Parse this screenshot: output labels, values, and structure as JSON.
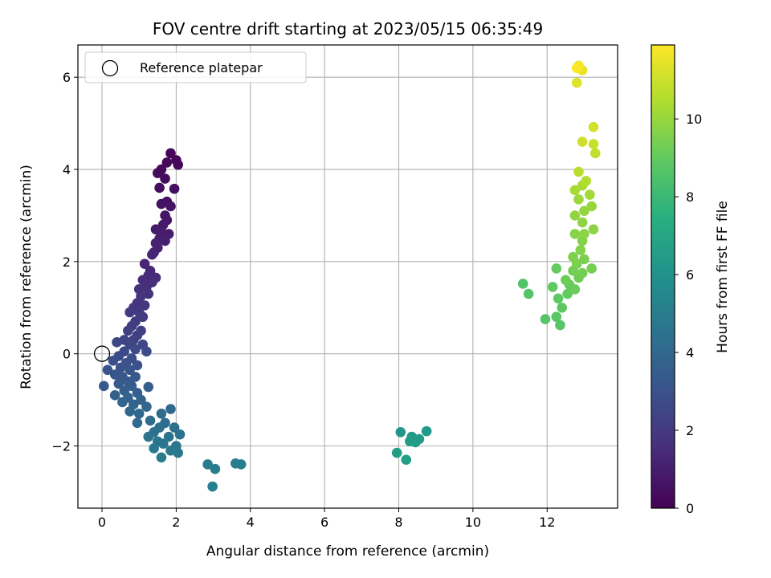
{
  "chart_data": {
    "type": "scatter",
    "title": "FOV centre drift starting at 2023/05/15 06:35:49",
    "xlabel": "Angular distance from reference (arcmin)",
    "ylabel": "Rotation from reference (arcmin)",
    "xlim": [
      -0.65,
      13.9
    ],
    "ylim": [
      -3.35,
      6.7
    ],
    "xticks": [
      0,
      2,
      4,
      6,
      8,
      10,
      12
    ],
    "yticks": [
      -2,
      0,
      2,
      4,
      6
    ],
    "grid": true,
    "legend": {
      "location": "upper-left",
      "entries": [
        "Reference platepar"
      ]
    },
    "reference_point": {
      "x": 0,
      "y": 0
    },
    "colorbar": {
      "label": "Hours from first FF file",
      "colormap": "viridis",
      "range": [
        0,
        11.9
      ],
      "ticks": [
        0,
        2,
        4,
        6,
        8,
        10
      ]
    },
    "series": [
      {
        "points": [
          {
            "x": 1.85,
            "y": 4.35,
            "h": 0.1
          },
          {
            "x": 2.0,
            "y": 4.2,
            "h": 0.15
          },
          {
            "x": 2.05,
            "y": 4.1,
            "h": 0.2
          },
          {
            "x": 1.75,
            "y": 4.15,
            "h": 0.25
          },
          {
            "x": 1.6,
            "y": 4.0,
            "h": 0.3
          },
          {
            "x": 1.5,
            "y": 3.92,
            "h": 0.35
          },
          {
            "x": 1.7,
            "y": 3.8,
            "h": 0.4
          },
          {
            "x": 1.55,
            "y": 3.6,
            "h": 0.45
          },
          {
            "x": 1.95,
            "y": 3.58,
            "h": 0.5
          },
          {
            "x": 1.75,
            "y": 3.3,
            "h": 0.55
          },
          {
            "x": 1.6,
            "y": 3.25,
            "h": 0.6
          },
          {
            "x": 1.85,
            "y": 3.2,
            "h": 0.65
          },
          {
            "x": 1.7,
            "y": 3.0,
            "h": 0.7
          },
          {
            "x": 1.75,
            "y": 2.9,
            "h": 0.75
          },
          {
            "x": 1.65,
            "y": 2.8,
            "h": 0.8
          },
          {
            "x": 1.45,
            "y": 2.7,
            "h": 0.85
          },
          {
            "x": 1.6,
            "y": 2.65,
            "h": 0.9
          },
          {
            "x": 1.8,
            "y": 2.6,
            "h": 0.95
          },
          {
            "x": 1.55,
            "y": 2.5,
            "h": 1.0
          },
          {
            "x": 1.7,
            "y": 2.45,
            "h": 1.05
          },
          {
            "x": 1.45,
            "y": 2.4,
            "h": 1.1
          },
          {
            "x": 1.5,
            "y": 2.3,
            "h": 1.15
          },
          {
            "x": 1.4,
            "y": 2.2,
            "h": 1.2
          },
          {
            "x": 1.35,
            "y": 2.15,
            "h": 1.25
          },
          {
            "x": 1.15,
            "y": 1.95,
            "h": 1.3
          },
          {
            "x": 1.3,
            "y": 1.8,
            "h": 1.35
          },
          {
            "x": 1.25,
            "y": 1.7,
            "h": 1.4
          },
          {
            "x": 1.45,
            "y": 1.65,
            "h": 1.45
          },
          {
            "x": 1.1,
            "y": 1.6,
            "h": 1.5
          },
          {
            "x": 1.35,
            "y": 1.55,
            "h": 1.55
          },
          {
            "x": 1.2,
            "y": 1.45,
            "h": 1.6
          },
          {
            "x": 1.0,
            "y": 1.4,
            "h": 1.65
          },
          {
            "x": 1.25,
            "y": 1.3,
            "h": 1.7
          },
          {
            "x": 1.05,
            "y": 1.25,
            "h": 1.75
          },
          {
            "x": 0.95,
            "y": 1.1,
            "h": 1.8
          },
          {
            "x": 1.15,
            "y": 1.05,
            "h": 1.85
          },
          {
            "x": 0.85,
            "y": 1.0,
            "h": 1.9
          },
          {
            "x": 1.0,
            "y": 0.9,
            "h": 1.95
          },
          {
            "x": 0.75,
            "y": 0.9,
            "h": 2.0
          },
          {
            "x": 1.1,
            "y": 0.8,
            "h": 2.05
          },
          {
            "x": 0.9,
            "y": 0.7,
            "h": 2.1
          },
          {
            "x": 0.8,
            "y": 0.6,
            "h": 2.15
          },
          {
            "x": 1.05,
            "y": 0.5,
            "h": 2.2
          },
          {
            "x": 0.7,
            "y": 0.5,
            "h": 2.25
          },
          {
            "x": 0.95,
            "y": 0.4,
            "h": 2.3
          },
          {
            "x": 0.85,
            "y": 0.3,
            "h": 2.35
          },
          {
            "x": 0.6,
            "y": 0.3,
            "h": 2.4
          },
          {
            "x": 1.1,
            "y": 0.2,
            "h": 2.45
          },
          {
            "x": 0.75,
            "y": 0.2,
            "h": 2.5
          },
          {
            "x": 0.4,
            "y": 0.25,
            "h": 2.55
          },
          {
            "x": 0.9,
            "y": 0.1,
            "h": 2.6
          },
          {
            "x": 0.6,
            "y": 0.05,
            "h": 2.65
          },
          {
            "x": 1.2,
            "y": 0.05,
            "h": 2.7
          },
          {
            "x": 0.45,
            "y": -0.05,
            "h": 2.75
          },
          {
            "x": 0.8,
            "y": -0.1,
            "h": 2.8
          },
          {
            "x": 0.3,
            "y": -0.15,
            "h": 2.85
          },
          {
            "x": 0.65,
            "y": -0.2,
            "h": 2.9
          },
          {
            "x": 0.95,
            "y": -0.25,
            "h": 2.95
          },
          {
            "x": 0.5,
            "y": -0.3,
            "h": 3.0
          },
          {
            "x": 0.15,
            "y": -0.35,
            "h": 3.05
          },
          {
            "x": 0.75,
            "y": -0.35,
            "h": 3.1
          },
          {
            "x": 0.35,
            "y": -0.45,
            "h": 3.15
          },
          {
            "x": 0.55,
            "y": -0.5,
            "h": 3.2
          },
          {
            "x": 0.9,
            "y": -0.5,
            "h": 3.25
          },
          {
            "x": 0.7,
            "y": -0.6,
            "h": 3.3
          },
          {
            "x": 0.05,
            "y": -0.7,
            "h": 3.35
          },
          {
            "x": 0.45,
            "y": -0.65,
            "h": 3.4
          },
          {
            "x": 0.8,
            "y": -0.7,
            "h": 3.45
          },
          {
            "x": 1.25,
            "y": -0.72,
            "h": 3.5
          },
          {
            "x": 0.6,
            "y": -0.8,
            "h": 3.55
          },
          {
            "x": 0.95,
            "y": -0.85,
            "h": 3.6
          },
          {
            "x": 0.35,
            "y": -0.9,
            "h": 3.65
          },
          {
            "x": 0.7,
            "y": -0.95,
            "h": 3.7
          },
          {
            "x": 1.05,
            "y": -1.0,
            "h": 3.75
          },
          {
            "x": 0.55,
            "y": -1.05,
            "h": 3.8
          },
          {
            "x": 0.85,
            "y": -1.1,
            "h": 3.85
          },
          {
            "x": 1.2,
            "y": -1.15,
            "h": 3.9
          },
          {
            "x": 0.75,
            "y": -1.25,
            "h": 3.95
          },
          {
            "x": 1.0,
            "y": -1.3,
            "h": 4.0
          },
          {
            "x": 1.85,
            "y": -1.2,
            "h": 4.05
          },
          {
            "x": 1.6,
            "y": -1.3,
            "h": 4.1
          },
          {
            "x": 0.95,
            "y": -1.5,
            "h": 4.15
          },
          {
            "x": 1.3,
            "y": -1.45,
            "h": 4.2
          },
          {
            "x": 1.7,
            "y": -1.5,
            "h": 4.25
          },
          {
            "x": 1.55,
            "y": -1.6,
            "h": 4.3
          },
          {
            "x": 1.95,
            "y": -1.6,
            "h": 4.35
          },
          {
            "x": 1.4,
            "y": -1.7,
            "h": 4.4
          },
          {
            "x": 2.1,
            "y": -1.75,
            "h": 4.45
          },
          {
            "x": 1.25,
            "y": -1.8,
            "h": 4.5
          },
          {
            "x": 1.8,
            "y": -1.8,
            "h": 4.55
          },
          {
            "x": 1.5,
            "y": -1.9,
            "h": 4.6
          },
          {
            "x": 1.65,
            "y": -1.95,
            "h": 4.65
          },
          {
            "x": 2.0,
            "y": -2.0,
            "h": 4.7
          },
          {
            "x": 1.4,
            "y": -2.05,
            "h": 4.75
          },
          {
            "x": 1.85,
            "y": -2.1,
            "h": 4.8
          },
          {
            "x": 2.05,
            "y": -2.15,
            "h": 4.85
          },
          {
            "x": 1.6,
            "y": -2.25,
            "h": 4.9
          },
          {
            "x": 2.85,
            "y": -2.4,
            "h": 4.95
          },
          {
            "x": 3.05,
            "y": -2.5,
            "h": 5.0
          },
          {
            "x": 3.6,
            "y": -2.38,
            "h": 5.05
          },
          {
            "x": 3.75,
            "y": -2.4,
            "h": 5.1
          },
          {
            "x": 2.98,
            "y": -2.88,
            "h": 5.15
          },
          {
            "x": 8.05,
            "y": -1.7,
            "h": 6.2
          },
          {
            "x": 8.35,
            "y": -1.8,
            "h": 6.3
          },
          {
            "x": 8.75,
            "y": -1.68,
            "h": 6.35
          },
          {
            "x": 8.55,
            "y": -1.85,
            "h": 6.4
          },
          {
            "x": 8.3,
            "y": -1.9,
            "h": 6.45
          },
          {
            "x": 8.45,
            "y": -1.92,
            "h": 6.5
          },
          {
            "x": 7.95,
            "y": -2.15,
            "h": 6.55
          },
          {
            "x": 8.2,
            "y": -2.3,
            "h": 6.6
          },
          {
            "x": 11.35,
            "y": 1.52,
            "h": 8.6
          },
          {
            "x": 11.5,
            "y": 1.3,
            "h": 8.65
          },
          {
            "x": 11.95,
            "y": 0.75,
            "h": 8.7
          },
          {
            "x": 12.35,
            "y": 0.62,
            "h": 8.75
          },
          {
            "x": 12.25,
            "y": 0.8,
            "h": 8.8
          },
          {
            "x": 12.4,
            "y": 1.0,
            "h": 8.85
          },
          {
            "x": 12.3,
            "y": 1.2,
            "h": 8.9
          },
          {
            "x": 12.15,
            "y": 1.45,
            "h": 8.95
          },
          {
            "x": 12.55,
            "y": 1.3,
            "h": 9.0
          },
          {
            "x": 12.25,
            "y": 1.85,
            "h": 9.05
          },
          {
            "x": 12.6,
            "y": 1.5,
            "h": 9.1
          },
          {
            "x": 12.75,
            "y": 1.4,
            "h": 9.15
          },
          {
            "x": 12.5,
            "y": 1.6,
            "h": 9.2
          },
          {
            "x": 12.85,
            "y": 1.65,
            "h": 9.25
          },
          {
            "x": 12.7,
            "y": 1.8,
            "h": 9.3
          },
          {
            "x": 12.95,
            "y": 1.75,
            "h": 9.35
          },
          {
            "x": 13.2,
            "y": 1.85,
            "h": 9.4
          },
          {
            "x": 12.8,
            "y": 1.95,
            "h": 9.45
          },
          {
            "x": 13.0,
            "y": 2.05,
            "h": 9.5
          },
          {
            "x": 12.7,
            "y": 2.1,
            "h": 9.55
          },
          {
            "x": 12.9,
            "y": 2.25,
            "h": 9.6
          },
          {
            "x": 12.95,
            "y": 2.45,
            "h": 9.65
          },
          {
            "x": 12.75,
            "y": 2.6,
            "h": 9.7
          },
          {
            "x": 13.0,
            "y": 2.6,
            "h": 9.75
          },
          {
            "x": 13.25,
            "y": 2.7,
            "h": 9.8
          },
          {
            "x": 12.95,
            "y": 2.85,
            "h": 9.85
          },
          {
            "x": 12.75,
            "y": 3.0,
            "h": 9.9
          },
          {
            "x": 13.0,
            "y": 3.1,
            "h": 9.95
          },
          {
            "x": 13.2,
            "y": 3.2,
            "h": 10.0
          },
          {
            "x": 12.85,
            "y": 3.35,
            "h": 10.1
          },
          {
            "x": 13.15,
            "y": 3.45,
            "h": 10.2
          },
          {
            "x": 12.75,
            "y": 3.55,
            "h": 10.3
          },
          {
            "x": 12.95,
            "y": 3.65,
            "h": 10.4
          },
          {
            "x": 13.05,
            "y": 3.75,
            "h": 10.5
          },
          {
            "x": 12.85,
            "y": 3.95,
            "h": 10.6
          },
          {
            "x": 13.3,
            "y": 4.35,
            "h": 10.8
          },
          {
            "x": 13.25,
            "y": 4.55,
            "h": 10.9
          },
          {
            "x": 12.95,
            "y": 4.6,
            "h": 11.0
          },
          {
            "x": 13.25,
            "y": 4.92,
            "h": 11.1
          },
          {
            "x": 12.8,
            "y": 5.88,
            "h": 11.3
          },
          {
            "x": 12.95,
            "y": 6.15,
            "h": 11.5
          },
          {
            "x": 12.85,
            "y": 6.25,
            "h": 11.7
          },
          {
            "x": 12.8,
            "y": 6.2,
            "h": 11.85
          }
        ]
      }
    ]
  }
}
